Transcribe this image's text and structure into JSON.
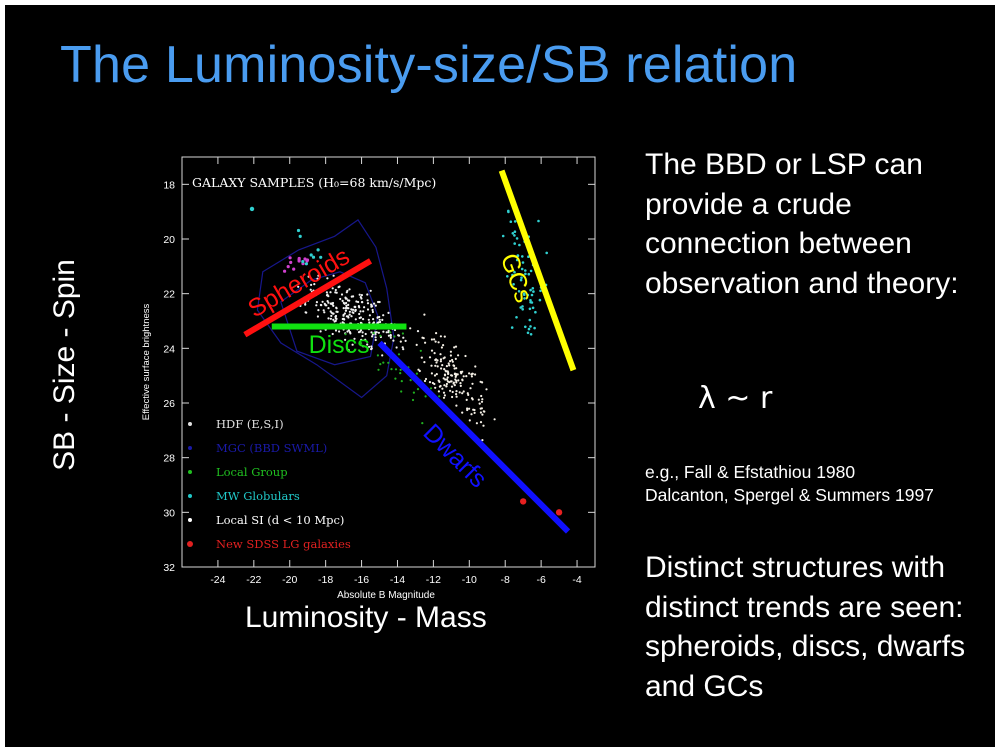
{
  "slide": {
    "title": "The Luminosity-size/SB relation",
    "y_axis_label": "SB - Size - Spin",
    "x_axis_label": "Luminosity - Mass",
    "text_block_1": "The BBD or LSP can provide a crude connection between observation and theory:",
    "relation": "λ ~ r",
    "references": [
      "e.g., Fall & Efstathiou 1980",
      "Dalcanton, Spergel & Summers 1997"
    ],
    "text_block_2": "Distinct structures with distinct trends are seen: spheroids, discs, dwarfs and GCs"
  },
  "chart_data": {
    "type": "scatter",
    "title": "GALAXY SAMPLES (H₀=68 km/s/Mpc)",
    "xlabel": "Absolute B Magnitude",
    "ylabel": "Effective surface brightness",
    "xlim": [
      -26,
      -3
    ],
    "ylim": [
      32,
      17
    ],
    "x_ticks": [
      "-24",
      "-22",
      "-20",
      "-18",
      "-16",
      "-14",
      "-12",
      "-10",
      "-8",
      "-6",
      "-4"
    ],
    "y_ticks": [
      "18",
      "20",
      "22",
      "24",
      "26",
      "28",
      "30",
      "32"
    ],
    "y_inverted": true,
    "legend": [
      {
        "label": "HDF (E,S,I)",
        "color": "#e0e0e0"
      },
      {
        "label": "MGC (BBD SWML)",
        "color": "#1a1aa8"
      },
      {
        "label": "Local Group",
        "color": "#20c020"
      },
      {
        "label": "MW Globulars",
        "color": "#20c8c8"
      },
      {
        "label": "Local SI (d < 10 Mpc)",
        "color": "#ffffff"
      },
      {
        "label": "New SDSS LG galaxies",
        "color": "#e02020"
      }
    ],
    "trend_lines": [
      {
        "name": "Spheroids",
        "color": "#ff1010",
        "x": [
          -22.5,
          -15.5
        ],
        "y": [
          23.5,
          20.8
        ]
      },
      {
        "name": "Discs",
        "color": "#10e010",
        "x": [
          -21,
          -13.5
        ],
        "y": [
          23.2,
          23.2
        ]
      },
      {
        "name": "Dwarfs",
        "color": "#1010ff",
        "x": [
          -15,
          -4.5
        ],
        "y": [
          23.8,
          30.7
        ]
      },
      {
        "name": "GCs",
        "color": "#ffff00",
        "x": [
          -8.2,
          -4.2
        ],
        "y": [
          17.5,
          24.8
        ]
      }
    ],
    "highlighted_points": [
      {
        "series": "New SDSS LG galaxies",
        "x": -7.0,
        "y": 29.6
      },
      {
        "series": "New SDSS LG galaxies",
        "x": -5.0,
        "y": 30.0
      }
    ]
  }
}
